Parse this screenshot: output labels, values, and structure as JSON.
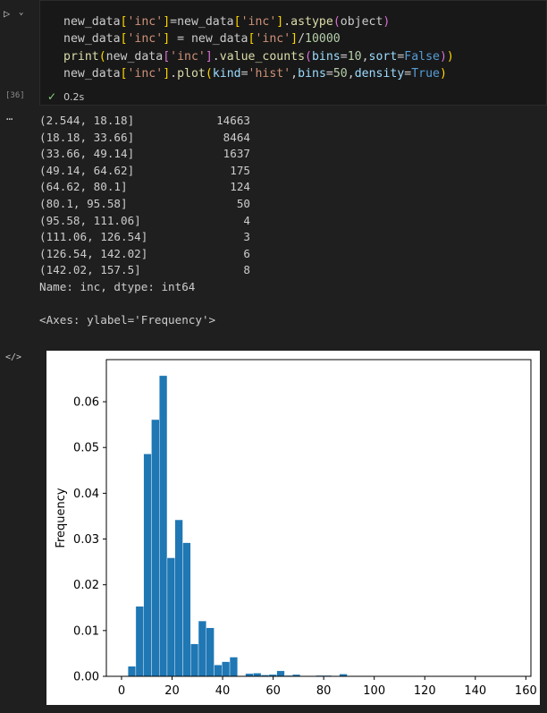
{
  "cell": {
    "execution_count": "[36]",
    "status_time": "0.2s",
    "code_lines": [
      [
        [
          "var",
          "new_data"
        ],
        [
          "br",
          "["
        ],
        [
          "str",
          "'inc'"
        ],
        [
          "br",
          "]"
        ],
        [
          "var",
          "=new_data"
        ],
        [
          "br",
          "["
        ],
        [
          "str",
          "'inc'"
        ],
        [
          "br",
          "]"
        ],
        [
          "var",
          "."
        ],
        [
          "fn",
          "astype"
        ],
        [
          "par",
          "("
        ],
        [
          "var",
          "object"
        ],
        [
          "par",
          ")"
        ]
      ],
      [
        [
          "var",
          "new_data"
        ],
        [
          "br",
          "["
        ],
        [
          "str",
          "'inc'"
        ],
        [
          "br",
          "]"
        ],
        [
          "var",
          " = new_data"
        ],
        [
          "br",
          "["
        ],
        [
          "str",
          "'inc'"
        ],
        [
          "br",
          "]"
        ],
        [
          "var",
          "/"
        ],
        [
          "num",
          "10000"
        ]
      ],
      [
        [
          "fn",
          "print"
        ],
        [
          "br",
          "("
        ],
        [
          "var",
          "new_data"
        ],
        [
          "par",
          "["
        ],
        [
          "str",
          "'inc'"
        ],
        [
          "par",
          "]"
        ],
        [
          "var",
          "."
        ],
        [
          "fn",
          "value_counts"
        ],
        [
          "par",
          "("
        ],
        [
          "arg",
          "bins"
        ],
        [
          "var",
          "="
        ],
        [
          "num",
          "10"
        ],
        [
          "var",
          ","
        ],
        [
          "arg",
          "sort"
        ],
        [
          "var",
          "="
        ],
        [
          "kw",
          "False"
        ],
        [
          "par",
          ")"
        ],
        [
          "br",
          ")"
        ]
      ],
      [
        [
          "var",
          "new_data"
        ],
        [
          "br",
          "["
        ],
        [
          "str",
          "'inc'"
        ],
        [
          "br",
          "]"
        ],
        [
          "var",
          "."
        ],
        [
          "fn",
          "plot"
        ],
        [
          "br",
          "("
        ],
        [
          "arg",
          "kind"
        ],
        [
          "var",
          "="
        ],
        [
          "str",
          "'hist'"
        ],
        [
          "var",
          ","
        ],
        [
          "arg",
          "bins"
        ],
        [
          "var",
          "="
        ],
        [
          "num",
          "50"
        ],
        [
          "var",
          ","
        ],
        [
          "arg",
          "density"
        ],
        [
          "var",
          "="
        ],
        [
          "kw",
          "True"
        ],
        [
          "br",
          ")"
        ]
      ]
    ]
  },
  "output": {
    "value_counts": [
      {
        "label": "(2.544, 18.18]",
        "count": "14663"
      },
      {
        "label": "(18.18, 33.66]",
        "count": "8464"
      },
      {
        "label": "(33.66, 49.14]",
        "count": "1637"
      },
      {
        "label": "(49.14, 64.62]",
        "count": "175"
      },
      {
        "label": "(64.62, 80.1]",
        "count": "124"
      },
      {
        "label": "(80.1, 95.58]",
        "count": "50"
      },
      {
        "label": "(95.58, 111.06]",
        "count": "4"
      },
      {
        "label": "(111.06, 126.54]",
        "count": "3"
      },
      {
        "label": "(126.54, 142.02]",
        "count": "6"
      },
      {
        "label": "(142.02, 157.5]",
        "count": "8"
      }
    ],
    "dtype_line": "Name: inc, dtype: int64",
    "axes_repr": "<Axes: ylabel='Frequency'>"
  },
  "chart_data": {
    "type": "bar",
    "ylabel": "Frequency",
    "xlim": [
      -6,
      162
    ],
    "ylim": [
      0,
      0.0692
    ],
    "xticks": [
      0,
      20,
      40,
      60,
      80,
      100,
      120,
      140,
      160
    ],
    "yticks": [
      0.0,
      0.01,
      0.02,
      0.03,
      0.04,
      0.05,
      0.06
    ],
    "ytick_labels": [
      "0.00",
      "0.01",
      "0.02",
      "0.03",
      "0.04",
      "0.05",
      "0.06"
    ],
    "bar_color": "#1f77b4",
    "bin_start": 2.544,
    "bin_width": 3.0991,
    "values": [
      0.0022,
      0.0153,
      0.0486,
      0.0561,
      0.0657,
      0.0259,
      0.0342,
      0.0292,
      0.0071,
      0.0121,
      0.0106,
      0.0025,
      0.0032,
      0.0042,
      0.0001,
      0.0006,
      0.0007,
      0.0003,
      0.0004,
      0.0012,
      0.0002,
      0.0004,
      0.0001,
      0.0001,
      0.0002,
      0.0002,
      0.0001,
      0.0005,
      0.0001,
      0.0001,
      0.0001,
      0.0,
      0.0,
      0.0,
      0.0,
      0.0001,
      0.0,
      0.0,
      0.0,
      0.0,
      0.0001,
      0.0,
      0.0,
      0.0,
      0.0,
      0.0,
      0.0,
      0.0001,
      0.0,
      0.0001
    ]
  }
}
